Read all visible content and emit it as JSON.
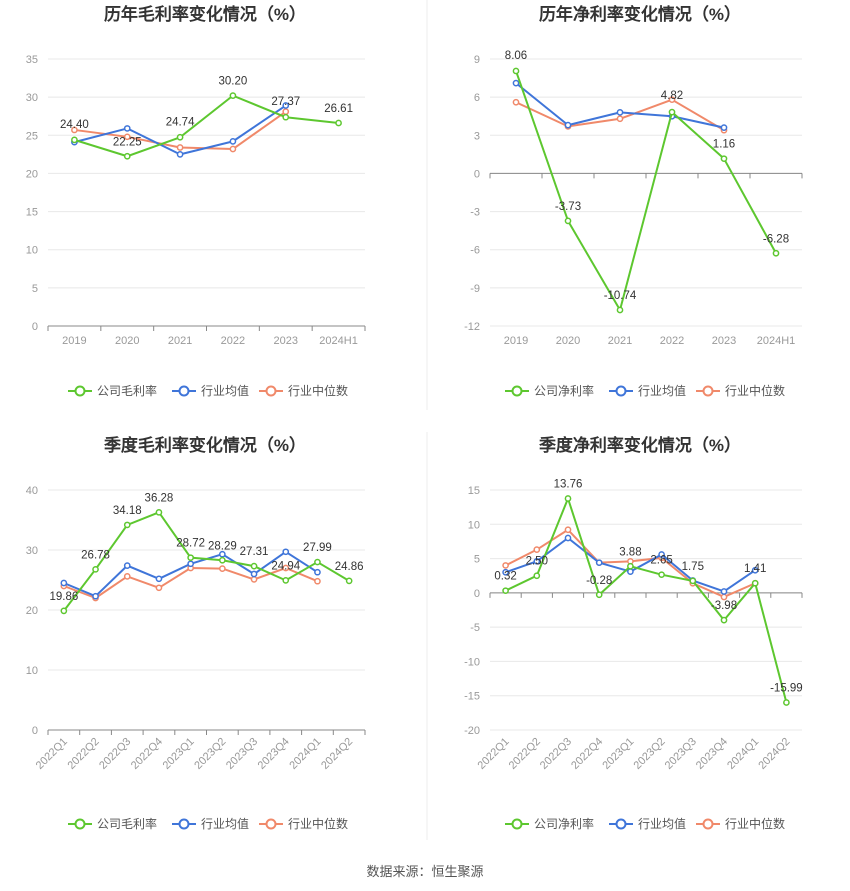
{
  "source": "数据来源：恒生聚源",
  "colors": {
    "company": "#5dc72f",
    "industry_avg": "#3f75d9",
    "industry_median": "#f0896a"
  },
  "chart_data": [
    {
      "type": "line",
      "title": "历年毛利率变化情况（%）",
      "categories": [
        "2019",
        "2020",
        "2021",
        "2022",
        "2023",
        "2024H1"
      ],
      "yticks": [
        0,
        5,
        10,
        15,
        20,
        25,
        30,
        35
      ],
      "ylim": [
        0,
        35
      ],
      "grid": true,
      "legend_position": "bottom",
      "series": [
        {
          "name": "公司毛利率",
          "values": [
            24.4,
            22.25,
            24.74,
            30.2,
            27.37,
            26.61
          ],
          "labels": [
            "24.40",
            "22.25",
            "24.74",
            "30.20",
            "27.37",
            "26.61"
          ]
        },
        {
          "name": "行业均值",
          "values": [
            24.1,
            25.9,
            22.5,
            24.2,
            28.9,
            null
          ]
        },
        {
          "name": "行业中位数",
          "values": [
            25.7,
            24.8,
            23.4,
            23.2,
            28.1,
            null
          ]
        }
      ]
    },
    {
      "type": "line",
      "title": "历年净利率变化情况（%）",
      "categories": [
        "2019",
        "2020",
        "2021",
        "2022",
        "2023",
        "2024H1"
      ],
      "yticks": [
        -12,
        -9,
        -6,
        -3,
        0,
        3,
        6,
        9
      ],
      "ylim": [
        -12,
        9
      ],
      "grid": true,
      "legend_position": "bottom",
      "series": [
        {
          "name": "公司净利率",
          "values": [
            8.06,
            -3.73,
            -10.74,
            4.82,
            1.16,
            -6.28
          ],
          "labels": [
            "8.06",
            "-3.73",
            "-10.74",
            "4.82",
            "1.16",
            "-6.28"
          ]
        },
        {
          "name": "行业均值",
          "values": [
            7.1,
            3.8,
            4.8,
            4.5,
            3.6,
            null
          ]
        },
        {
          "name": "行业中位数",
          "values": [
            5.6,
            3.7,
            4.3,
            5.8,
            3.4,
            null
          ]
        }
      ]
    },
    {
      "type": "line",
      "title": "季度毛利率变化情况（%）",
      "categories": [
        "2022Q1",
        "2022Q2",
        "2022Q3",
        "2022Q4",
        "2023Q1",
        "2023Q2",
        "2023Q3",
        "2023Q4",
        "2024Q1",
        "2024Q2"
      ],
      "rotate_xticks": true,
      "yticks": [
        0,
        10,
        20,
        30,
        40
      ],
      "ylim": [
        0,
        40
      ],
      "grid": true,
      "legend_position": "bottom",
      "series": [
        {
          "name": "公司毛利率",
          "values": [
            19.86,
            26.78,
            34.18,
            36.28,
            28.72,
            28.29,
            27.31,
            24.94,
            27.99,
            24.86
          ],
          "labels": [
            "19.86",
            "26.78",
            "34.18",
            "36.28",
            "28.72",
            "28.29",
            "27.31",
            "24.94",
            "27.99",
            "24.86"
          ]
        },
        {
          "name": "行业均值",
          "values": [
            24.5,
            22.3,
            27.4,
            25.2,
            27.7,
            29.3,
            26.0,
            29.7,
            26.3,
            null
          ]
        },
        {
          "name": "行业中位数",
          "values": [
            24.0,
            22.0,
            25.6,
            23.7,
            27.0,
            26.9,
            25.1,
            27.0,
            24.8,
            null
          ]
        }
      ]
    },
    {
      "type": "line",
      "title": "季度净利率变化情况（%）",
      "categories": [
        "2022Q1",
        "2022Q2",
        "2022Q3",
        "2022Q4",
        "2023Q1",
        "2023Q2",
        "2023Q3",
        "2023Q4",
        "2024Q1",
        "2024Q2"
      ],
      "rotate_xticks": true,
      "yticks": [
        -20,
        -15,
        -10,
        -5,
        0,
        5,
        10,
        15
      ],
      "ylim": [
        -20,
        15
      ],
      "grid": true,
      "legend_position": "bottom",
      "series": [
        {
          "name": "公司净利率",
          "values": [
            0.32,
            2.5,
            13.76,
            -0.28,
            3.88,
            2.65,
            1.75,
            -3.98,
            1.41,
            -15.99
          ],
          "labels": [
            "0.32",
            "2.50",
            "13.76",
            "-0.28",
            "3.88",
            "2.65",
            "1.75",
            "-3.98",
            "1.41",
            "-15.99"
          ]
        },
        {
          "name": "行业均值",
          "values": [
            3.0,
            4.6,
            8.0,
            4.4,
            3.1,
            5.6,
            1.8,
            0.2,
            3.3,
            null
          ]
        },
        {
          "name": "行业中位数",
          "values": [
            4.0,
            6.3,
            9.2,
            4.4,
            4.6,
            5.1,
            1.4,
            -0.6,
            1.4,
            null
          ]
        }
      ]
    }
  ]
}
